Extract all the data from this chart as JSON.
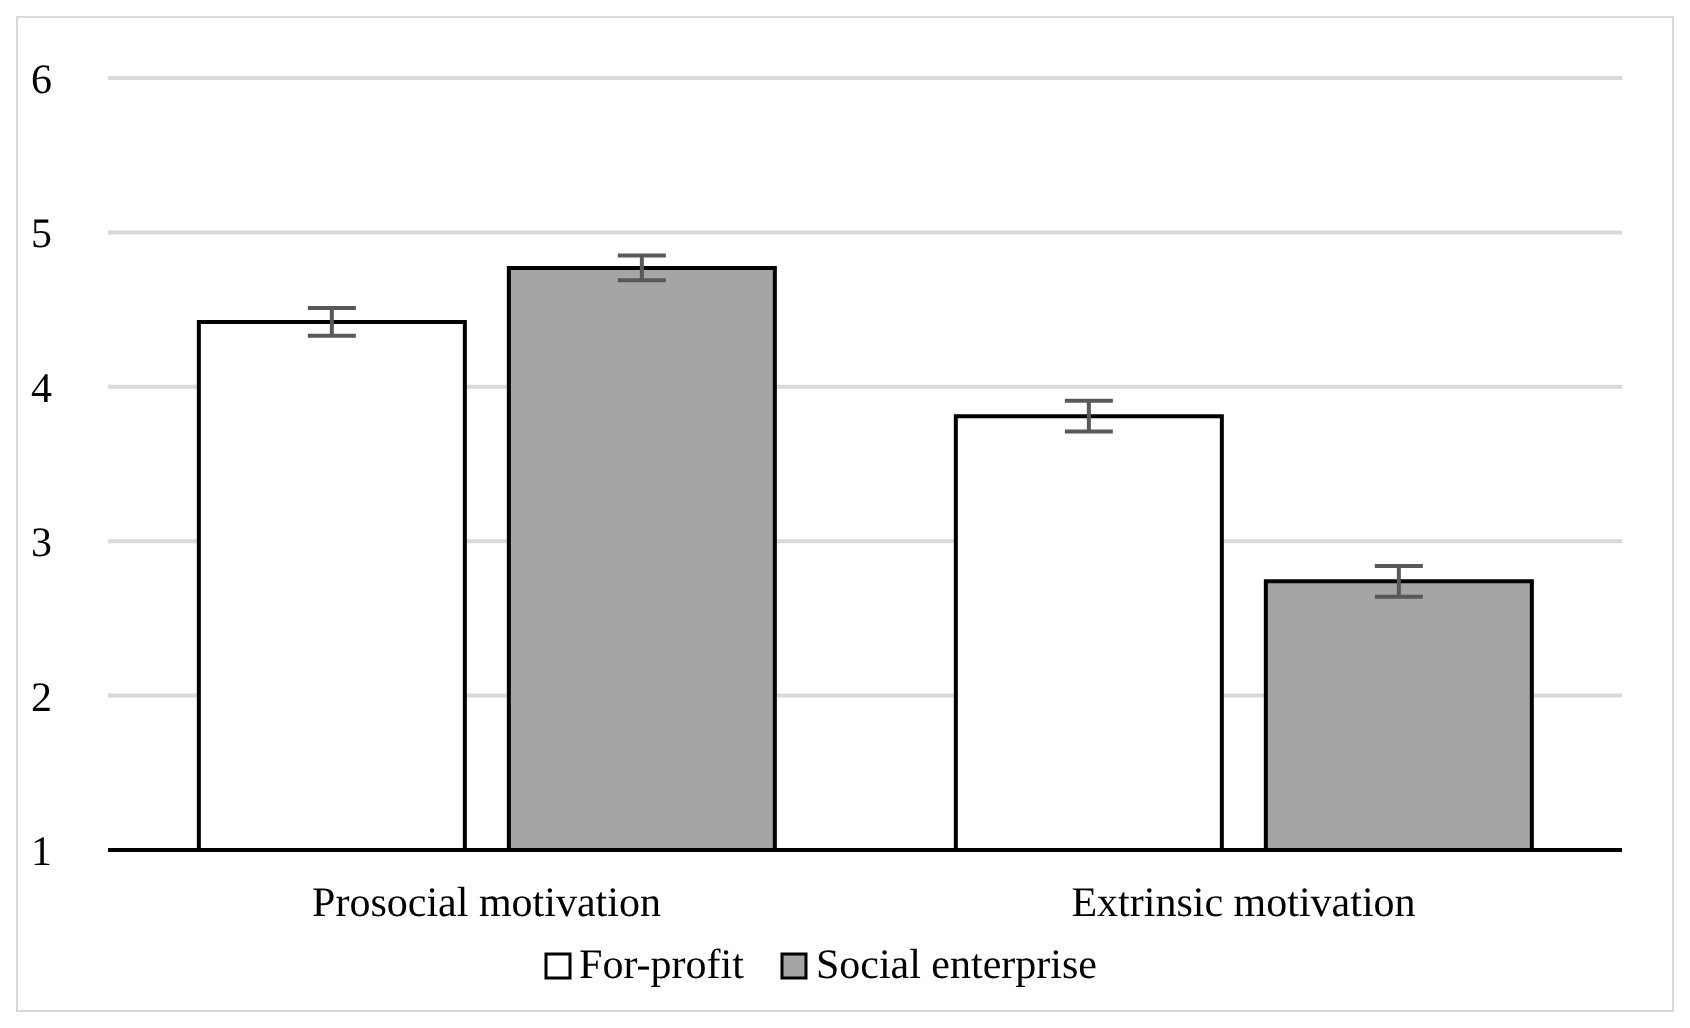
{
  "chart_data": {
    "type": "bar",
    "categories": [
      "Prosocial motivation",
      "Extrinsic motivation"
    ],
    "series": [
      {
        "name": "For-profit",
        "color": "#ffffff",
        "values": [
          4.42,
          3.81
        ],
        "errors": [
          0.09,
          0.1
        ]
      },
      {
        "name": "Social enterprise",
        "color": "#a5a5a5",
        "values": [
          4.77,
          2.74
        ],
        "errors": [
          0.08,
          0.1
        ]
      }
    ],
    "ylim": [
      1,
      6
    ],
    "yticks": [
      1,
      2,
      3,
      4,
      5,
      6
    ],
    "grid": "y",
    "legend": "bottom"
  }
}
